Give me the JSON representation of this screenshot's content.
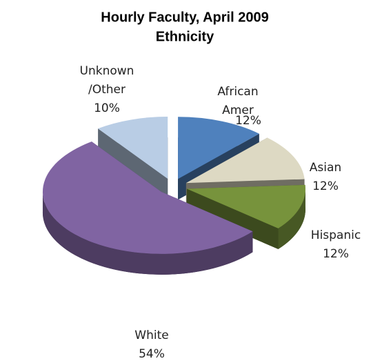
{
  "chart_data": {
    "type": "pie3d",
    "title": "Hourly Faculty, April 2009",
    "subtitle": "Ethnicity",
    "categories": [
      "African Amer",
      "Asian",
      "Hispanic",
      "White",
      "Unknown /Other"
    ],
    "values": [
      12,
      12,
      12,
      54,
      10
    ],
    "value_labels": [
      "12%",
      "12%",
      "12%",
      "54%",
      "10%"
    ],
    "colors": [
      "#4f81bd",
      "#ddd9c3",
      "#77933c",
      "#8064a2",
      "#b9cde5"
    ],
    "exploded": true
  }
}
